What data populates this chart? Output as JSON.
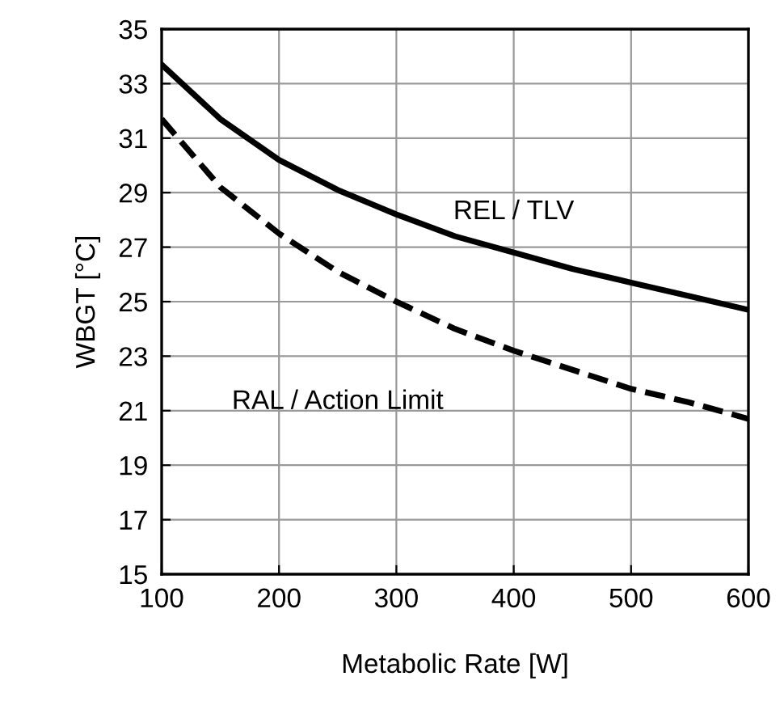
{
  "chart_data": {
    "type": "line",
    "xlabel": "Metabolic Rate [W]",
    "ylabel": "WBGT [°C]",
    "x": [
      100,
      150,
      200,
      250,
      300,
      350,
      400,
      450,
      500,
      550,
      600
    ],
    "series": [
      {
        "name": "REL / TLV",
        "color": "#000000",
        "line_style": "solid",
        "values": [
          33.7,
          31.7,
          30.2,
          29.1,
          28.2,
          27.4,
          26.8,
          26.2,
          25.7,
          25.2,
          24.7
        ]
      },
      {
        "name": "RAL / Action Limit",
        "color": "#000000",
        "line_style": "dashed",
        "values": [
          31.7,
          29.2,
          27.5,
          26.1,
          25.0,
          24.0,
          23.2,
          22.5,
          21.8,
          21.3,
          20.7
        ]
      }
    ],
    "xlim": [
      100,
      600
    ],
    "xticks": [
      100,
      200,
      300,
      400,
      500,
      600
    ],
    "ylim": [
      15,
      35
    ],
    "yticks": [
      15,
      17,
      19,
      21,
      23,
      25,
      27,
      29,
      31,
      33,
      35
    ],
    "grid": true,
    "marker": "none",
    "legend": false
  }
}
